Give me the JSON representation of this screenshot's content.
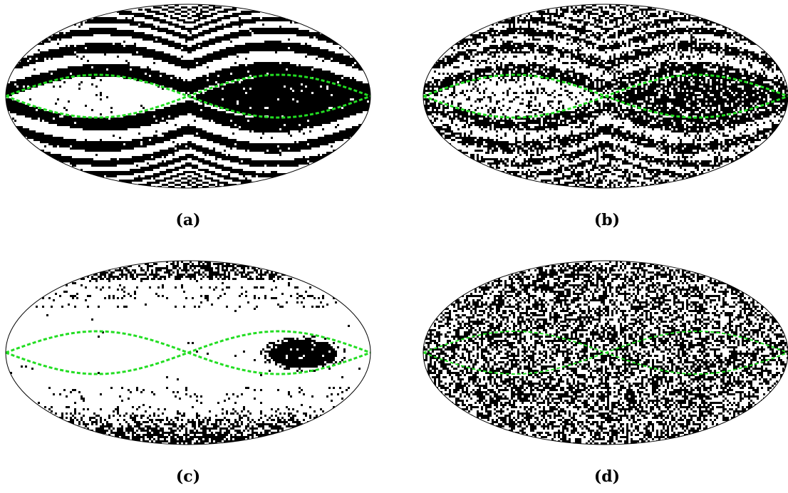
{
  "figure": {
    "panels": [
      {
        "id": "a",
        "caption": "(a)",
        "pattern": "stripes",
        "noise": 0.03
      },
      {
        "id": "b",
        "caption": "(b)",
        "pattern": "stripes",
        "noise": 0.22
      },
      {
        "id": "c",
        "caption": "(c)",
        "pattern": "sparse-blob",
        "noise": 0.0
      },
      {
        "id": "d",
        "caption": "(d)",
        "pattern": "random",
        "noise": 0.5
      }
    ],
    "colors": {
      "curve": "#22dd22",
      "fill": "#000000",
      "background": "#ffffff",
      "outline": "#000000"
    }
  }
}
